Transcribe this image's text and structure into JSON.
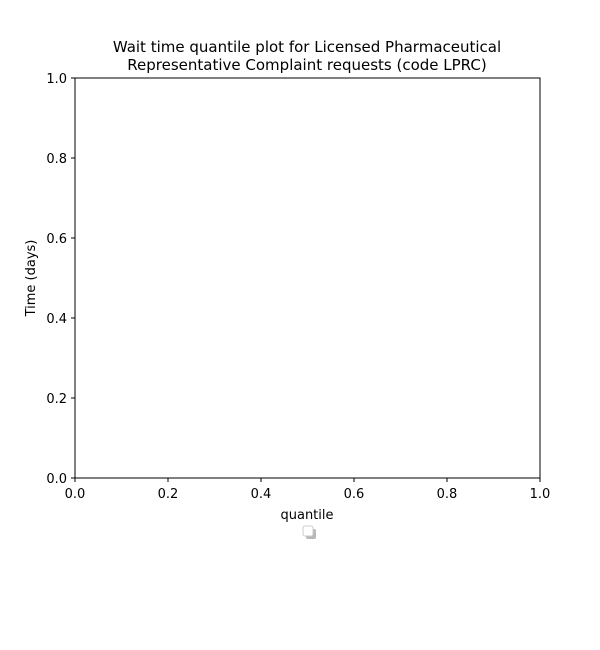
{
  "chart_data": {
    "type": "line",
    "title": "Wait time quantile plot for Licensed Pharmaceutical Representative Complaint  requests (code LPRC)",
    "title_lines": [
      "Wait time quantile plot for Licensed Pharmaceutical",
      "Representative Complaint  requests (code LPRC)"
    ],
    "xlabel": "quantile",
    "ylabel": "Time (days)",
    "xlim": [
      0.0,
      1.0
    ],
    "ylim": [
      0.0,
      1.0
    ],
    "xticks": [
      "0.0",
      "0.2",
      "0.4",
      "0.6",
      "0.8",
      "1.0"
    ],
    "yticks": [
      "0.0",
      "0.2",
      "0.4",
      "0.6",
      "0.8",
      "1.0"
    ],
    "series": [],
    "grid": false,
    "legend": {
      "placement": "below-axes",
      "entries": []
    }
  },
  "colors": {
    "axes": "#000000",
    "background": "#ffffff",
    "legend_border": "#cccccc",
    "legend_shadow": "#888888"
  }
}
